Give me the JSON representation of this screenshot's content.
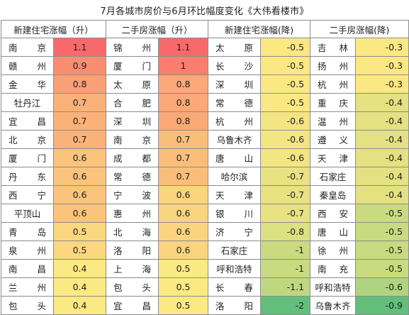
{
  "title": "7月各城市房价与6月环比幅度变化《大伟看楼市》",
  "headers": [
    "新建住宅涨幅（升）",
    "二手房涨幅（升）",
    "新建住宅涨幅(降)",
    "二手房涨幅(降)"
  ],
  "rows": [
    [
      [
        "南京",
        "1.1"
      ],
      [
        "锦州",
        "1.1"
      ],
      [
        "太原",
        "-0.5"
      ],
      [
        "吉林",
        "-0.3"
      ]
    ],
    [
      [
        "赣州",
        "0.9"
      ],
      [
        "厦门",
        "1"
      ],
      [
        "长沙",
        "-0.5"
      ],
      [
        "扬州",
        "-0.3"
      ]
    ],
    [
      [
        "金华",
        "0.8"
      ],
      [
        "太原",
        "0.8"
      ],
      [
        "深圳",
        "-0.5"
      ],
      [
        "杭州",
        "-0.3"
      ]
    ],
    [
      [
        "牡丹江",
        "0.7"
      ],
      [
        "合肥",
        "0.8"
      ],
      [
        "常德",
        "-0.5"
      ],
      [
        "重庆",
        "-0.4"
      ]
    ],
    [
      [
        "宜昌",
        "0.7"
      ],
      [
        "深圳",
        "0.8"
      ],
      [
        "杭州",
        "-0.6"
      ],
      [
        "温州",
        "-0.4"
      ]
    ],
    [
      [
        "北京",
        "0.7"
      ],
      [
        "南京",
        "0.7"
      ],
      [
        "乌鲁木齐",
        "-0.6"
      ],
      [
        "遵义",
        "-0.4"
      ]
    ],
    [
      [
        "厦门",
        "0.6"
      ],
      [
        "成都",
        "0.7"
      ],
      [
        "唐山",
        "-0.6"
      ],
      [
        "天津",
        "-0.4"
      ]
    ],
    [
      [
        "丹东",
        "0.6"
      ],
      [
        "常德",
        "0.7"
      ],
      [
        "哈尔滨",
        "-0.7"
      ],
      [
        "石家庄",
        "-0.4"
      ]
    ],
    [
      [
        "西宁",
        "0.6"
      ],
      [
        "宁波",
        "0.6"
      ],
      [
        "天津",
        "-0.7"
      ],
      [
        "秦皇岛",
        "-0.4"
      ]
    ],
    [
      [
        "平顶山",
        "0.6"
      ],
      [
        "惠州",
        "0.6"
      ],
      [
        "银川",
        "-0.7"
      ],
      [
        "西安",
        "-0.5"
      ]
    ],
    [
      [
        "青岛",
        "0.5"
      ],
      [
        "北海",
        "0.6"
      ],
      [
        "济宁",
        "-0.8"
      ],
      [
        "唐山",
        "-0.5"
      ]
    ],
    [
      [
        "泉州",
        "0.5"
      ],
      [
        "洛阳",
        "0.6"
      ],
      [
        "石家庄",
        "-1"
      ],
      [
        "徐州",
        "-0.5"
      ]
    ],
    [
      [
        "南昌",
        "0.4"
      ],
      [
        "上海",
        "0.5"
      ],
      [
        "呼和浩特",
        "-1"
      ],
      [
        "南充",
        "-0.5"
      ]
    ],
    [
      [
        "兰州",
        "0.4"
      ],
      [
        "包头",
        "0.5"
      ],
      [
        "长春",
        "-1.1"
      ],
      [
        "呼和浩特",
        "-0.6"
      ]
    ],
    [
      [
        "包头",
        "0.4"
      ],
      [
        "宜昌",
        "0.5"
      ],
      [
        "洛阳",
        "-2"
      ],
      [
        "乌鲁木齐",
        "-0.9"
      ]
    ]
  ],
  "colors": {
    "rise_high": "#f8696b",
    "rise_low": "#fbe983",
    "fall_low": "#fce883",
    "fall_high": "#63be7b"
  }
}
